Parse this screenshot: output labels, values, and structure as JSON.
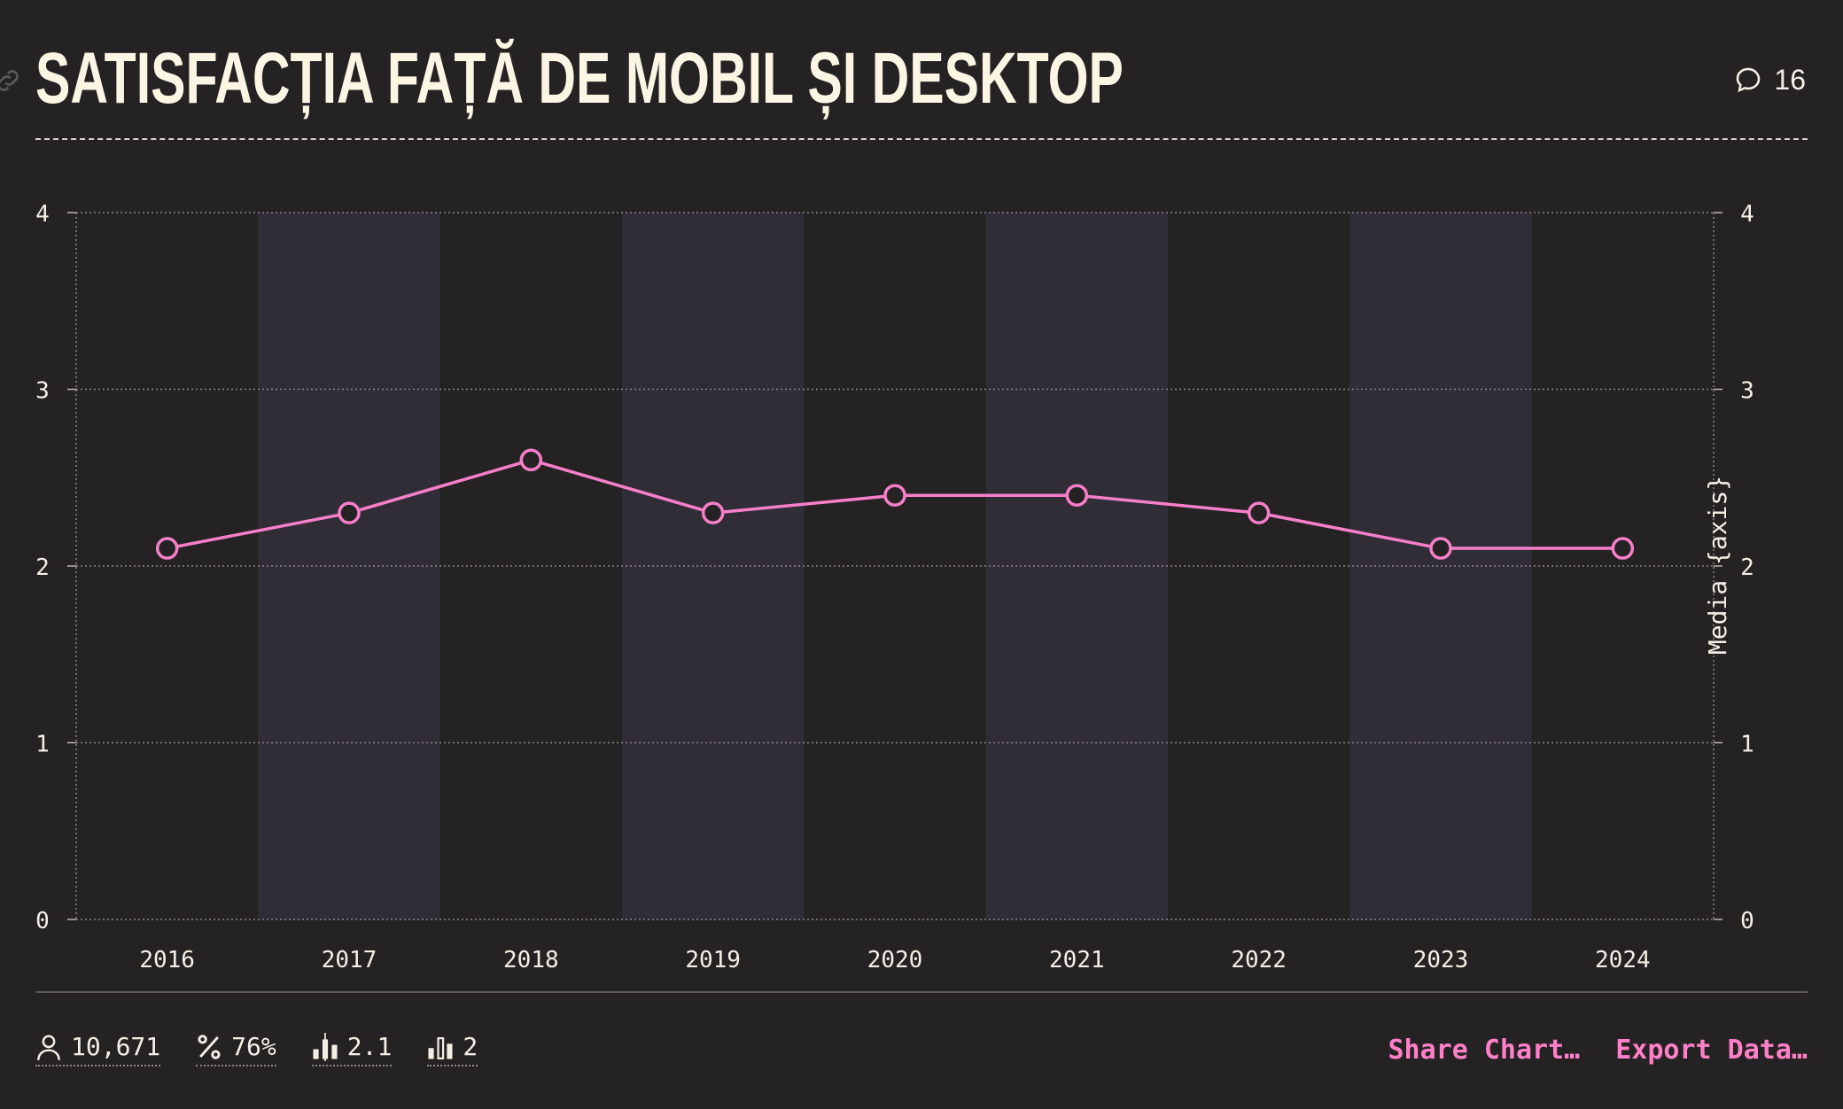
{
  "header": {
    "title": "SATISFACȚIA FAȚĂ DE MOBIL ȘI DESKTOP",
    "comment_count": "16"
  },
  "chart_data": {
    "type": "line",
    "x": [
      "2016",
      "2017",
      "2018",
      "2019",
      "2020",
      "2021",
      "2022",
      "2023",
      "2024"
    ],
    "series": [
      {
        "values": [
          2.1,
          2.3,
          2.6,
          2.3,
          2.4,
          2.4,
          2.3,
          2.1,
          2.1
        ],
        "color": "#f77fca"
      }
    ],
    "y_ticks": [
      0,
      1,
      2,
      3,
      4
    ],
    "ylim": [
      0,
      4
    ],
    "ylabel_right": "Media {axis}",
    "grid": true,
    "alternating_column_bands": true
  },
  "footer": {
    "stats": [
      {
        "icon": "user-icon",
        "value": "10,671"
      },
      {
        "icon": "percent-icon",
        "value": "76%"
      },
      {
        "icon": "median-bars-icon",
        "value": "2.1"
      },
      {
        "icon": "mode-bars-icon",
        "value": "2"
      }
    ],
    "actions": {
      "share": "Share Chart…",
      "export": "Export Data…"
    }
  },
  "colors": {
    "background": "#252223",
    "band": "#312d37",
    "line": "#f77fca",
    "accent": "#ff7fc8",
    "title": "#fbf5e4"
  }
}
